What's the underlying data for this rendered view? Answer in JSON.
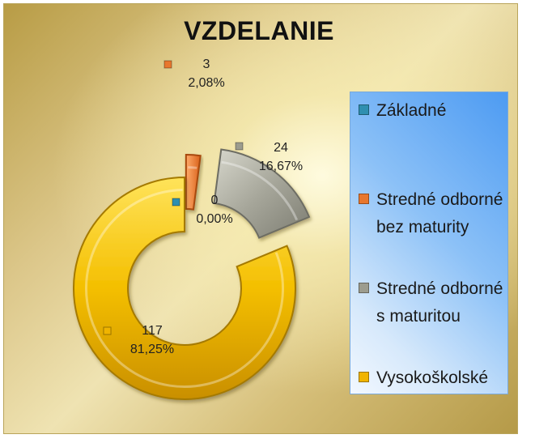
{
  "chart_data": {
    "type": "pie",
    "title": "VZDELANIE",
    "categories": [
      "Základné",
      "Stredné odborné bez maturity",
      "Stredné odborné s maturitou",
      "Vysokoškolské"
    ],
    "values": [
      0,
      3,
      24,
      117
    ],
    "percent_labels": [
      "0,00%",
      "2,08%",
      "16,67%",
      "81,25%"
    ],
    "colors": [
      "#2f8fb0",
      "#e8772e",
      "#9c9c8e",
      "#f0b400"
    ],
    "legend_position": "right",
    "exploded": true
  }
}
